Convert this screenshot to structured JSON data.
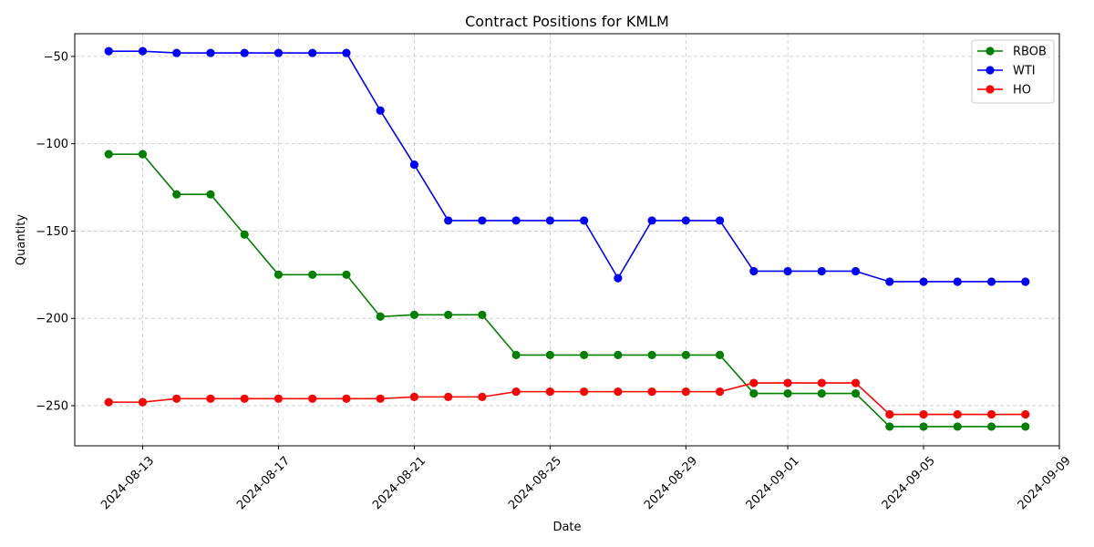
{
  "chart_data": {
    "type": "line",
    "title": "Contract Positions for KMLM",
    "xlabel": "Date",
    "ylabel": "Quantity",
    "x_axis_type": "date",
    "xlim": [
      "2024-08-11",
      "2024-09-09"
    ],
    "ylim": [
      -273,
      -37
    ],
    "x_ticks": [
      "2024-08-13",
      "2024-08-17",
      "2024-08-21",
      "2024-08-25",
      "2024-08-29",
      "2024-09-01",
      "2024-09-05",
      "2024-09-09"
    ],
    "y_ticks": [
      -50,
      -100,
      -150,
      -200,
      -250
    ],
    "grid": true,
    "legend_position": "top-right",
    "x": [
      "2024-08-12",
      "2024-08-13",
      "2024-08-14",
      "2024-08-15",
      "2024-08-16",
      "2024-08-17",
      "2024-08-18",
      "2024-08-19",
      "2024-08-20",
      "2024-08-21",
      "2024-08-22",
      "2024-08-23",
      "2024-08-24",
      "2024-08-25",
      "2024-08-26",
      "2024-08-27",
      "2024-08-28",
      "2024-08-29",
      "2024-08-30",
      "2024-08-31",
      "2024-09-01",
      "2024-09-02",
      "2024-09-03",
      "2024-09-04",
      "2024-09-05",
      "2024-09-06",
      "2024-09-07",
      "2024-09-08"
    ],
    "series": [
      {
        "name": "RBOB",
        "color": "#008000",
        "values": [
          -106,
          -106,
          -129,
          -129,
          -152,
          -175,
          -175,
          -175,
          -199,
          -198,
          -198,
          -198,
          -221,
          -221,
          -221,
          -221,
          -221,
          -221,
          -221,
          -243,
          -243,
          -243,
          -243,
          -262,
          -262,
          -262,
          -262,
          -262
        ]
      },
      {
        "name": "WTI",
        "color": "#0000ff",
        "values": [
          -47,
          -47,
          -48,
          -48,
          -48,
          -48,
          -48,
          -48,
          -81,
          -112,
          -144,
          -144,
          -144,
          -144,
          -144,
          -177,
          -144,
          -144,
          -144,
          -173,
          -173,
          -173,
          -173,
          -179,
          -179,
          -179,
          -179,
          -179
        ]
      },
      {
        "name": "HO",
        "color": "#ff0000",
        "values": [
          -248,
          -248,
          -246,
          -246,
          -246,
          -246,
          -246,
          -246,
          -246,
          -245,
          -245,
          -245,
          -242,
          -242,
          -242,
          -242,
          -242,
          -242,
          -242,
          -237,
          -237,
          -237,
          -237,
          -255,
          -255,
          -255,
          -255,
          -255
        ]
      }
    ]
  }
}
